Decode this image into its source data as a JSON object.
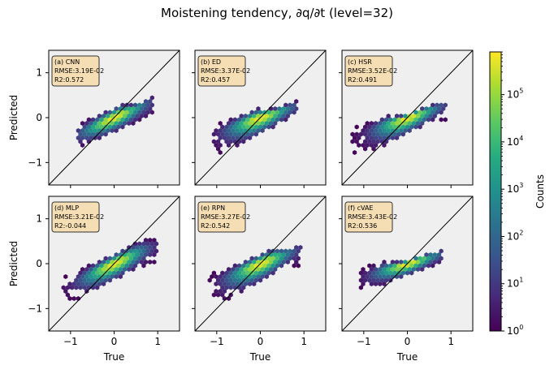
{
  "figure": {
    "title": "Moistening tendency, ∂q/∂t (level=32)"
  },
  "chart_data": {
    "type": "hexbin",
    "layout": {
      "rows": 2,
      "cols": 3
    },
    "xlabel": "True",
    "ylabel": "Predicted",
    "xlim": [
      -1.5,
      1.5
    ],
    "ylim": [
      -1.5,
      1.5
    ],
    "xticks": [
      -1,
      0,
      1
    ],
    "yticks": [
      -1,
      0,
      1
    ],
    "tick_labels": [
      "−1",
      "0",
      "1"
    ],
    "reference_line": "y = x",
    "panel_background": "#efefef",
    "panels": [
      {
        "label": "(a) CNN",
        "rmse": "RMSE:3.19E-02",
        "r2": "R2:0.572",
        "shape": {
          "x_range": [
            -0.85,
            0.9
          ],
          "y_low": -0.65,
          "y_high": 0.3,
          "slope": 0.45
        }
      },
      {
        "label": "(b) ED",
        "rmse": "RMSE:3.37E-02",
        "r2": "R2:0.457",
        "shape": {
          "x_range": [
            -1.1,
            0.85
          ],
          "y_low": -0.75,
          "y_high": 0.2,
          "slope": 0.35
        }
      },
      {
        "label": "(c) HSR",
        "rmse": "RMSE:3.52E-02",
        "r2": "R2:0.491",
        "shape": {
          "x_range": [
            -1.3,
            0.95
          ],
          "y_low": -0.75,
          "y_high": 0.05,
          "slope": 0.35
        }
      },
      {
        "label": "(d) MLP",
        "rmse": "RMSE:3.21E-02",
        "r2": "R2:-0.044",
        "shape": {
          "x_range": [
            -1.2,
            1.0
          ],
          "y_low": -0.75,
          "y_high": 0.55,
          "slope": 0.45
        }
      },
      {
        "label": "(e) RPN",
        "rmse": "RMSE:3.27E-02",
        "r2": "R2:0.542",
        "shape": {
          "x_range": [
            -1.2,
            0.95
          ],
          "y_low": -0.8,
          "y_high": 0.35,
          "slope": 0.4
        }
      },
      {
        "label": "(f) cVAE",
        "rmse": "RMSE:3.43E-02",
        "r2": "R2:0.536",
        "shape": {
          "x_range": [
            -1.1,
            0.8
          ],
          "y_low": -0.55,
          "y_high": 0.05,
          "slope": 0.3
        }
      }
    ],
    "colorbar": {
      "label": "Counts",
      "scale": "log",
      "min": 1,
      "max": 800000,
      "colormap": "viridis",
      "ticks": [
        {
          "value": 1,
          "base": "10",
          "exp": "0"
        },
        {
          "value": 10,
          "base": "10",
          "exp": "1"
        },
        {
          "value": 100,
          "base": "10",
          "exp": "2"
        },
        {
          "value": 1000,
          "base": "10",
          "exp": "3"
        },
        {
          "value": 10000,
          "base": "10",
          "exp": "4"
        },
        {
          "value": 100000,
          "base": "10",
          "exp": "5"
        }
      ]
    },
    "colors": {
      "box_face": "#f5deb3",
      "box_edge": "#333333",
      "line": "#000000"
    }
  }
}
